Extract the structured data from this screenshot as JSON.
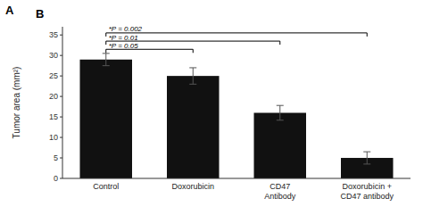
{
  "chart_data": {
    "type": "bar",
    "categories": [
      "Control",
      "Doxorubicin",
      "CD47\nAntibody",
      "Doxorubicin +\nCD47 antibody"
    ],
    "values": [
      29.0,
      25.0,
      16.0,
      5.0
    ],
    "errors": [
      1.5,
      2.0,
      1.8,
      1.5
    ],
    "color": "#111111",
    "ylabel": "Tumor area (mm²)",
    "ylim": [
      0,
      37
    ],
    "yticks": [
      0,
      5,
      10,
      15,
      20,
      25,
      30,
      35
    ],
    "grid": false,
    "annotations": [
      {
        "text": "*P = 0.05",
        "x1": 0,
        "x2": 1,
        "y": 31.5
      },
      {
        "text": "*P = 0.01",
        "x1": 0,
        "x2": 2,
        "y": 33.5
      },
      {
        "text": "*P = 0.002",
        "x1": 0,
        "x2": 3,
        "y": 35.5
      },
      {
        "text": "A"
      },
      {
        "text": "B"
      }
    ]
  }
}
